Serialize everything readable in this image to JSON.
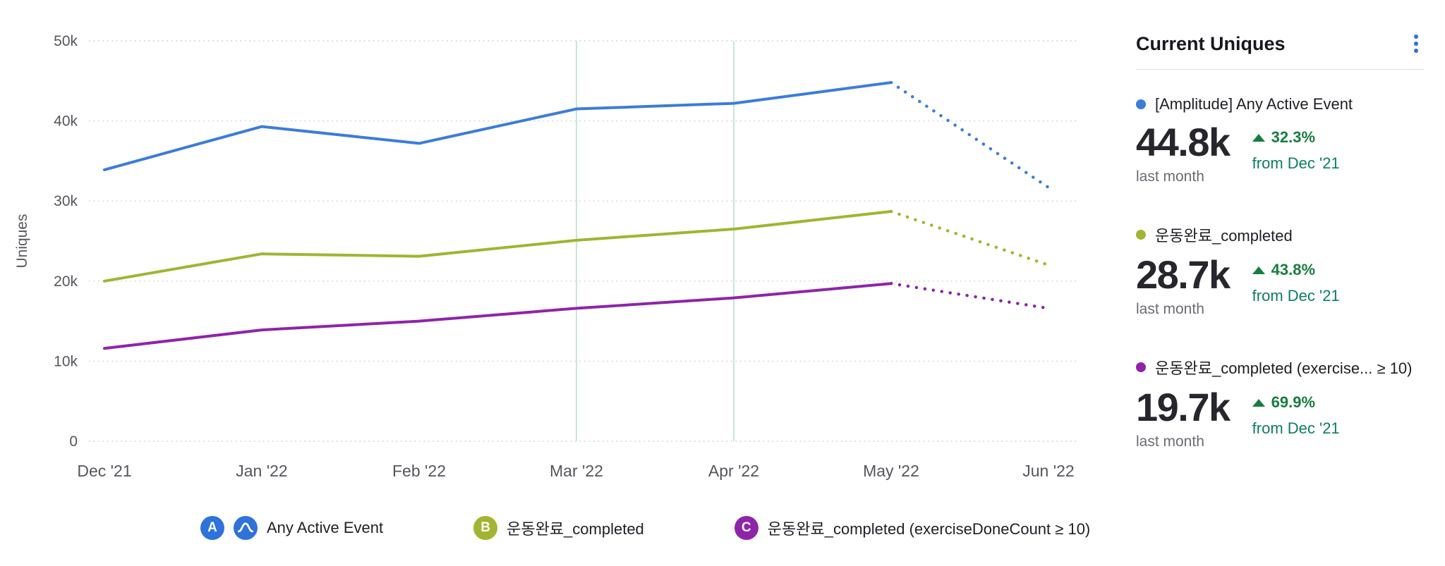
{
  "panel": {
    "title": "Current Uniques",
    "menu_icon": "kebab-menu-icon",
    "accent_color": "#2f6fde",
    "delta_color": "#177d3e",
    "from_color": "#0c7d60",
    "stats": [
      {
        "name": "[Amplitude] Any Active Event",
        "color": "#3b7dd8",
        "value": "44.8k",
        "period": "last month",
        "delta": "32.3%",
        "delta_dir": "up",
        "from": "from Dec '21"
      },
      {
        "name": "운동완료_completed",
        "color": "#a2b431",
        "value": "28.7k",
        "period": "last month",
        "delta": "43.8%",
        "delta_dir": "up",
        "from": "from Dec '21"
      },
      {
        "name": "운동완료_completed (exercise... ≥ 10)",
        "color": "#8e24aa",
        "value": "19.7k",
        "period": "last month",
        "delta": "69.9%",
        "delta_dir": "up",
        "from": "from Dec '21"
      }
    ]
  },
  "legend": [
    {
      "badge": "A",
      "color": "#2f72da",
      "logo_icon": "amplitude-logo-icon",
      "logo_color": "#2f72da",
      "label": "Any Active Event"
    },
    {
      "badge": "B",
      "color": "#a2b431",
      "label": "운동완료_completed"
    },
    {
      "badge": "C",
      "color": "#8e24aa",
      "label": "운동완료_completed (exerciseDoneCount ≥ 10)"
    }
  ],
  "chart_data": {
    "type": "line",
    "title": "Current Uniques",
    "x": [
      "Dec '21",
      "Jan '22",
      "Feb '22",
      "Mar '22",
      "Apr '22",
      "May '22",
      "Jun '22"
    ],
    "xlabel": "",
    "ylabel": "Uniques",
    "ylim": [
      0,
      50000
    ],
    "yticks": [
      0,
      10000,
      20000,
      30000,
      40000,
      50000
    ],
    "ytick_labels": [
      "0",
      "10k",
      "20k",
      "30k",
      "40k",
      "50k"
    ],
    "grid": "horizontal-dotted",
    "grid_color": "#c7c7cb",
    "axis_color": "#55555c",
    "series": [
      {
        "name": "[Amplitude] Any Active Event",
        "color": "#3b7dd8",
        "values": [
          33900,
          39300,
          37200,
          41500,
          42200,
          44800,
          31700
        ],
        "dotted_from_index": 5
      },
      {
        "name": "운동완료_completed",
        "color": "#a2b431",
        "values": [
          20000,
          23400,
          23100,
          25100,
          26500,
          28700,
          22000
        ],
        "dotted_from_index": 5
      },
      {
        "name": "운동완료_completed (exerciseDoneCount ≥ 10)",
        "color": "#8e24aa",
        "values": [
          11600,
          13900,
          15000,
          16600,
          17900,
          19700,
          16600
        ],
        "dotted_from_index": 5
      }
    ],
    "annotations": {
      "vertical_lines_at": [
        "Mar '22",
        "Apr '22"
      ],
      "color": "#c6e5da"
    },
    "legend_position": "bottom"
  }
}
